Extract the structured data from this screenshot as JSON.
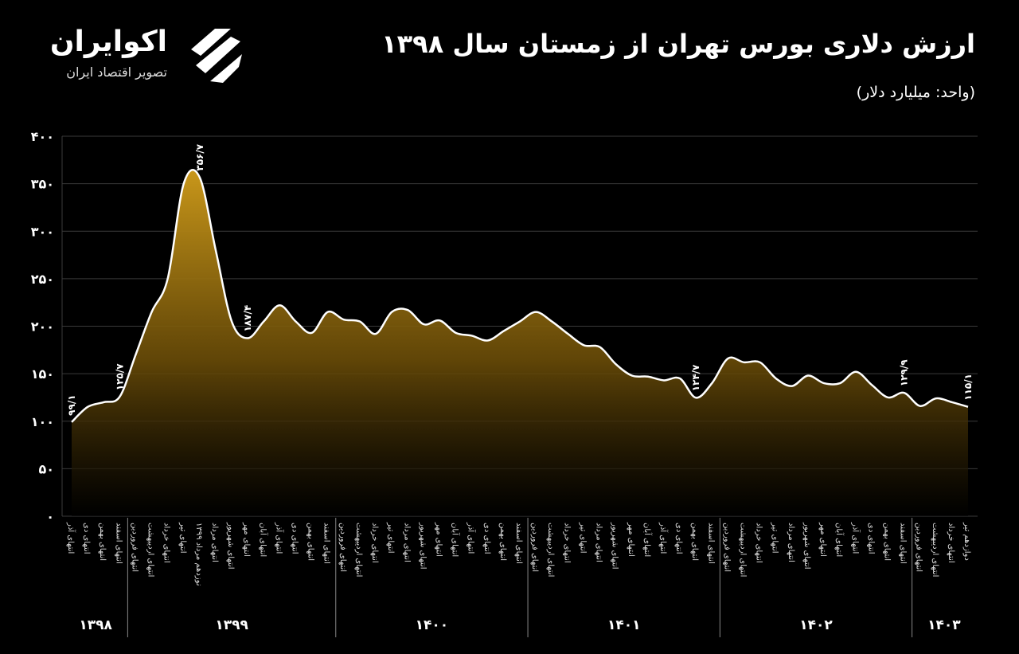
{
  "header": {
    "brand": "اکوایران",
    "tagline": "تصویر اقتصاد ایران"
  },
  "chart_data": {
    "type": "area",
    "title": "ارزش دلاری بورس تهران از زمستان سال ۱۳۹۸",
    "subtitle": "(واحد: میلیارد دلار)",
    "groups": [
      {
        "name": "۱۳۹۸",
        "categories": [
          "انتهای آذر",
          "انتهای دی",
          "انتهای بهمن",
          "انتهای اسفند"
        ]
      },
      {
        "name": "۱۳۹۹",
        "categories": [
          "انتهای فروردین",
          "انتهای اردیبهشت",
          "انتهای خرداد",
          "انتهای تیر",
          "نوزدهم مرداد ۱۳۹۹",
          "انتهای مرداد",
          "انتهای شهریور",
          "انتهای مهر",
          "انتهای آبان",
          "انتهای آذر",
          "انتهای دی",
          "انتهای بهمن",
          "انتهای اسفند"
        ]
      },
      {
        "name": "۱۴۰۰",
        "categories": [
          "انتهای فروردین",
          "انتهای اردیبهشت",
          "انتهای خرداد",
          "انتهای تیر",
          "انتهای مرداد",
          "انتهای شهریور",
          "انتهای مهر",
          "انتهای آبان",
          "انتهای آذر",
          "انتهای دی",
          "انتهای بهمن",
          "انتهای اسفند"
        ]
      },
      {
        "name": "۱۴۰۱",
        "categories": [
          "انتهای فروردین",
          "انتهای اردیبهشت",
          "انتهای خرداد",
          "انتهای تیر",
          "انتهای مرداد",
          "انتهای شهریور",
          "انتهای مهر",
          "انتهای آبان",
          "انتهای آذر",
          "انتهای دی",
          "انتهای بهمن",
          "انتهای اسفند"
        ]
      },
      {
        "name": "۱۴۰۲",
        "categories": [
          "انتهای فروردین",
          "انتهای اردیبهشت",
          "انتهای خرداد",
          "انتهای تیر",
          "انتهای مرداد",
          "انتهای شهریور",
          "انتهای مهر",
          "انتهای آبان",
          "انتهای آذر",
          "انتهای دی",
          "انتهای بهمن",
          "انتهای اسفند"
        ]
      },
      {
        "name": "۱۴۰۳",
        "categories": [
          "انتهای فروردین",
          "انتهای اردیبهشت",
          "انتهای خرداد",
          "دوازدهم تیر"
        ]
      }
    ],
    "values": [
      99.1,
      115,
      120,
      125.7,
      170,
      215,
      250,
      350,
      356.7,
      280,
      205,
      187.4,
      205,
      222,
      205,
      193,
      215,
      207,
      205,
      192,
      215,
      217,
      202,
      206,
      193,
      190,
      185,
      195,
      205,
      215,
      205,
      192,
      180,
      178,
      160,
      148,
      147,
      143,
      145,
      124.7,
      140,
      166,
      162,
      162,
      145,
      137,
      148,
      140,
      140,
      152,
      138,
      125,
      129.9,
      116,
      124,
      120,
      115.1
    ],
    "value_labels": [
      "۹۹/۱",
      null,
      null,
      "۱۲۵/۷",
      null,
      null,
      null,
      null,
      "۳۵۶/۷",
      null,
      null,
      "۱۸۷/۴",
      null,
      null,
      null,
      null,
      null,
      null,
      null,
      null,
      null,
      null,
      null,
      null,
      null,
      null,
      null,
      null,
      null,
      null,
      null,
      null,
      null,
      null,
      null,
      null,
      null,
      null,
      null,
      "۱۲۴/۷",
      null,
      null,
      null,
      null,
      null,
      null,
      null,
      null,
      null,
      null,
      null,
      null,
      "۱۲۹/۹",
      null,
      null,
      null,
      "۱۱۵/۱"
    ],
    "color": "#c9971a",
    "line_color": "#ffffff",
    "ylim": [
      0,
      400
    ],
    "yticks": [
      {
        "value": 0,
        "label": "۰"
      },
      {
        "value": 50,
        "label": "۵۰"
      },
      {
        "value": 100,
        "label": "۱۰۰"
      },
      {
        "value": 150,
        "label": "۱۵۰"
      },
      {
        "value": 200,
        "label": "۲۰۰"
      },
      {
        "value": 250,
        "label": "۲۵۰"
      },
      {
        "value": 300,
        "label": "۳۰۰"
      },
      {
        "value": 350,
        "label": "۳۵۰"
      },
      {
        "value": 400,
        "label": "۴۰۰"
      }
    ],
    "grid": true
  }
}
